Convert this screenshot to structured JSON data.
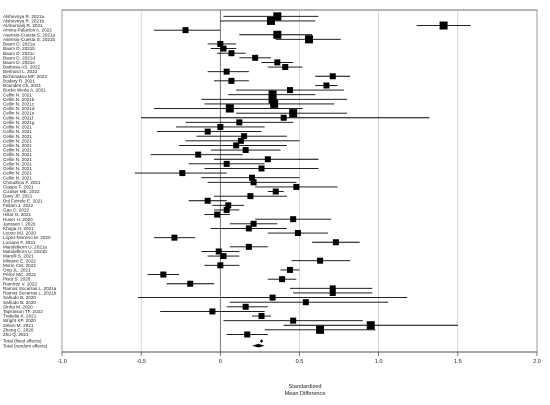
{
  "chart_data": {
    "type": "forest",
    "xlabel": "Standardized\nMean Difference",
    "xlim": [
      -1.0,
      2.0
    ],
    "xticks": [
      -1.0,
      -0.5,
      0.0,
      0.5,
      1.0,
      1.5,
      2.0
    ],
    "xtick_labels": [
      "-1.0",
      "-0.5",
      "0",
      "0.5",
      "1.0",
      "1.5",
      "2.0"
    ],
    "grid": true,
    "studies": [
      {
        "label": "Alshevnya R. 2021a",
        "est": 0.36,
        "lo": 0.02,
        "hi": 0.62,
        "w": 4
      },
      {
        "label": "Alshevnya R. 2021b",
        "est": 0.32,
        "lo": 0.0,
        "hi": 0.6,
        "w": 4
      },
      {
        "label": "AlAbumarij R. 2021",
        "est": 1.41,
        "lo": 1.24,
        "hi": 1.58,
        "w": 4
      },
      {
        "label": "Amina-Palacios A. 2022",
        "est": -0.22,
        "lo": -0.42,
        "hi": 0.0,
        "w": 3
      },
      {
        "label": "Asensio-Cuesta S. 2021a",
        "est": 0.36,
        "lo": 0.12,
        "hi": 0.58,
        "w": 4
      },
      {
        "label": "Asensio-Cuesta S. 2021b",
        "est": 0.56,
        "lo": 0.35,
        "hi": 0.76,
        "w": 4
      },
      {
        "label": "Baum D. 2021a",
        "est": 0.0,
        "lo": -0.08,
        "hi": 0.1,
        "w": 3
      },
      {
        "label": "Baum D. 2021b",
        "est": 0.02,
        "lo": -0.06,
        "hi": 0.1,
        "w": 3
      },
      {
        "label": "Baum D. 2021c",
        "est": 0.07,
        "lo": -0.02,
        "hi": 0.16,
        "w": 3
      },
      {
        "label": "Baum D. 2021d",
        "est": 0.22,
        "lo": 0.12,
        "hi": 0.32,
        "w": 3
      },
      {
        "label": "Baum D. 2021e",
        "est": 0.36,
        "lo": 0.26,
        "hi": 0.46,
        "w": 3
      },
      {
        "label": "Barbosa AS. 2022",
        "est": 0.41,
        "lo": 0.3,
        "hi": 0.52,
        "w": 3
      },
      {
        "label": "Bertrand L. 2022",
        "est": 0.04,
        "lo": -0.08,
        "hi": 0.18,
        "w": 3
      },
      {
        "label": "Bichenakov MF. 2023",
        "est": 0.71,
        "lo": 0.6,
        "hi": 0.82,
        "w": 3
      },
      {
        "label": "Bodary R. 2021",
        "est": 0.07,
        "lo": -0.04,
        "hi": 0.18,
        "w": 3
      },
      {
        "label": "Boundes Ch. 2021",
        "est": 0.67,
        "lo": 0.6,
        "hi": 0.74,
        "w": 3
      },
      {
        "label": "Bucke Weda A. 2021",
        "est": 0.44,
        "lo": 0.1,
        "hi": 0.78,
        "w": 3
      },
      {
        "label": "Cellin N. 2021",
        "est": 0.33,
        "lo": 0.05,
        "hi": 0.6,
        "w": 4
      },
      {
        "label": "Cellin N. 2021b",
        "est": 0.33,
        "lo": -0.12,
        "hi": 0.8,
        "w": 4
      },
      {
        "label": "Cellin N. 2021c",
        "est": 0.34,
        "lo": -0.1,
        "hi": 0.72,
        "w": 4
      },
      {
        "label": "Cellin N. 2021d",
        "est": 0.06,
        "lo": -0.42,
        "hi": 0.52,
        "w": 4
      },
      {
        "label": "Cellin N. 2021e",
        "est": 0.46,
        "lo": 0.1,
        "hi": 0.8,
        "w": 4
      },
      {
        "label": "Cellin N. 2021f",
        "est": 0.4,
        "lo": -0.5,
        "hi": 1.32,
        "w": 3
      },
      {
        "label": "Cellin N. 2021g",
        "est": 0.12,
        "lo": -0.22,
        "hi": 0.46,
        "w": 3
      },
      {
        "label": "Cellin N. 2021",
        "est": 0.0,
        "lo": -0.28,
        "hi": 0.28,
        "w": 3
      },
      {
        "label": "Cellin N. 2021",
        "est": -0.08,
        "lo": -0.4,
        "hi": 0.26,
        "w": 3
      },
      {
        "label": "Cellin N. 2021",
        "est": 0.15,
        "lo": -0.15,
        "hi": 0.42,
        "w": 3
      },
      {
        "label": "Cellin N. 2021",
        "est": 0.13,
        "lo": -0.22,
        "hi": 0.5,
        "w": 3
      },
      {
        "label": "Cellin N. 2021",
        "est": 0.1,
        "lo": -0.26,
        "hi": 0.42,
        "w": 3
      },
      {
        "label": "Cellin N. 2021",
        "est": 0.16,
        "lo": -0.06,
        "hi": 0.38,
        "w": 3
      },
      {
        "label": "Cellin N. 2021",
        "est": -0.14,
        "lo": -0.44,
        "hi": 0.14,
        "w": 3
      },
      {
        "label": "Cellin N. 2021",
        "est": 0.3,
        "lo": -0.04,
        "hi": 0.62,
        "w": 3
      },
      {
        "label": "Cellin N. 2021",
        "est": 0.04,
        "lo": -0.2,
        "hi": 0.28,
        "w": 3
      },
      {
        "label": "Cellin N. 2021",
        "est": 0.26,
        "lo": -0.1,
        "hi": 0.62,
        "w": 3
      },
      {
        "label": "Cellin N. 2021",
        "est": -0.24,
        "lo": -0.54,
        "hi": 0.04,
        "w": 3
      },
      {
        "label": "Cellin N. 2021",
        "est": 0.2,
        "lo": -0.12,
        "hi": 0.5,
        "w": 3
      },
      {
        "label": "Choudhou F. 2021",
        "est": 0.21,
        "lo": -0.08,
        "hi": 0.48,
        "w": 3
      },
      {
        "label": "Ciaspo F. 2021",
        "est": 0.48,
        "lo": 0.22,
        "hi": 0.74,
        "w": 3
      },
      {
        "label": "Cizaser ME. 2022",
        "est": 0.35,
        "lo": 0.3,
        "hi": 0.4,
        "w": 3
      },
      {
        "label": "Davy JP. 2021",
        "est": 0.19,
        "lo": -0.04,
        "hi": 0.42,
        "w": 3
      },
      {
        "label": "Dol Ferrele E. 2021",
        "est": -0.08,
        "lo": -0.2,
        "hi": 0.04,
        "w": 3
      },
      {
        "label": "Fellam J. 2022",
        "est": 0.05,
        "lo": -0.05,
        "hi": 0.15,
        "w": 3
      },
      {
        "label": "Gao C. 2022",
        "est": 0.04,
        "lo": -0.04,
        "hi": 0.12,
        "w": 3
      },
      {
        "label": "Hillar G. 2021",
        "est": -0.02,
        "lo": -0.1,
        "hi": 0.06,
        "w": 3
      },
      {
        "label": "Huser H. 2020",
        "est": 0.46,
        "lo": 0.22,
        "hi": 0.7,
        "w": 3
      },
      {
        "label": "Janssen I. 2020",
        "est": 0.21,
        "lo": 0.06,
        "hi": 0.36,
        "w": 3
      },
      {
        "label": "Khoga H. 2021",
        "est": 0.18,
        "lo": -0.06,
        "hi": 0.42,
        "w": 3
      },
      {
        "label": "Leone MJ. 2020",
        "est": 0.49,
        "lo": 0.3,
        "hi": 0.68,
        "w": 3
      },
      {
        "label": "López-Moreno M. 2020",
        "est": -0.29,
        "lo": -0.42,
        "hi": -0.16,
        "w": 3
      },
      {
        "label": "Luciano F. 2021",
        "est": 0.73,
        "lo": 0.58,
        "hi": 0.88,
        "w": 3
      },
      {
        "label": "Mandelkorn U. 2021a",
        "est": 0.18,
        "lo": 0.06,
        "hi": 0.3,
        "w": 3
      },
      {
        "label": "Mandelkorn U. 2021b",
        "est": -0.01,
        "lo": -0.12,
        "hi": 0.12,
        "w": 3
      },
      {
        "label": "Marelli S. 2021",
        "est": 0.02,
        "lo": -0.08,
        "hi": 0.12,
        "w": 3
      },
      {
        "label": "Mlinaric E. 2022",
        "est": 0.63,
        "lo": 0.45,
        "hi": 0.82,
        "w": 3
      },
      {
        "label": "Morin CM. 2022",
        "est": 0.0,
        "lo": -0.1,
        "hi": 0.12,
        "w": 3
      },
      {
        "label": "Ong JL. 2021",
        "est": 0.44,
        "lo": 0.38,
        "hi": 0.5,
        "w": 3
      },
      {
        "label": "Pérez MC. 2021",
        "est": -0.36,
        "lo": -0.46,
        "hi": -0.26,
        "w": 3
      },
      {
        "label": "Pisot S. 2020",
        "est": 0.39,
        "lo": 0.3,
        "hi": 0.48,
        "w": 3
      },
      {
        "label": "Ramírez V. 2022",
        "est": -0.19,
        "lo": -0.34,
        "hi": -0.04,
        "w": 3
      },
      {
        "label": "Ramos Socarras L. 2021a",
        "est": 0.71,
        "lo": 0.44,
        "hi": 0.96,
        "w": 3
      },
      {
        "label": "Ramos Socarras L. 2021b",
        "est": 0.71,
        "lo": 0.46,
        "hi": 0.96,
        "w": 3
      },
      {
        "label": "Sañudo B. 2020",
        "est": 0.33,
        "lo": -0.52,
        "hi": 1.18,
        "w": 3
      },
      {
        "label": "Sañudo B. 2020",
        "est": 0.54,
        "lo": 0.06,
        "hi": 1.06,
        "w": 3
      },
      {
        "label": "Sinha M. 2020",
        "est": 0.16,
        "lo": 0.04,
        "hi": 0.3,
        "w": 3
      },
      {
        "label": "Tapsinson TF. 2022",
        "est": -0.05,
        "lo": -0.38,
        "hi": 0.28,
        "w": 3
      },
      {
        "label": "Trabelsi K. 2021",
        "est": 0.26,
        "lo": 0.2,
        "hi": 0.32,
        "w": 3
      },
      {
        "label": "Wright KP. 2020",
        "est": 0.46,
        "lo": 0.02,
        "hi": 0.9,
        "w": 3
      },
      {
        "label": "Zeleni M. 2021",
        "est": 0.95,
        "lo": 0.4,
        "hi": 1.5,
        "w": 4
      },
      {
        "label": "Zheng C. 2020",
        "est": 0.63,
        "lo": 0.28,
        "hi": 0.98,
        "w": 4
      },
      {
        "label": "Zhu Q. 2021",
        "est": 0.17,
        "lo": 0.04,
        "hi": 0.3,
        "w": 3
      }
    ],
    "summary": [
      {
        "label": "Total (fixed effects)",
        "est": 0.26,
        "lo": 0.25,
        "hi": 0.27
      },
      {
        "label": "Total (random effects)",
        "est": 0.24,
        "lo": 0.2,
        "hi": 0.28
      }
    ]
  }
}
